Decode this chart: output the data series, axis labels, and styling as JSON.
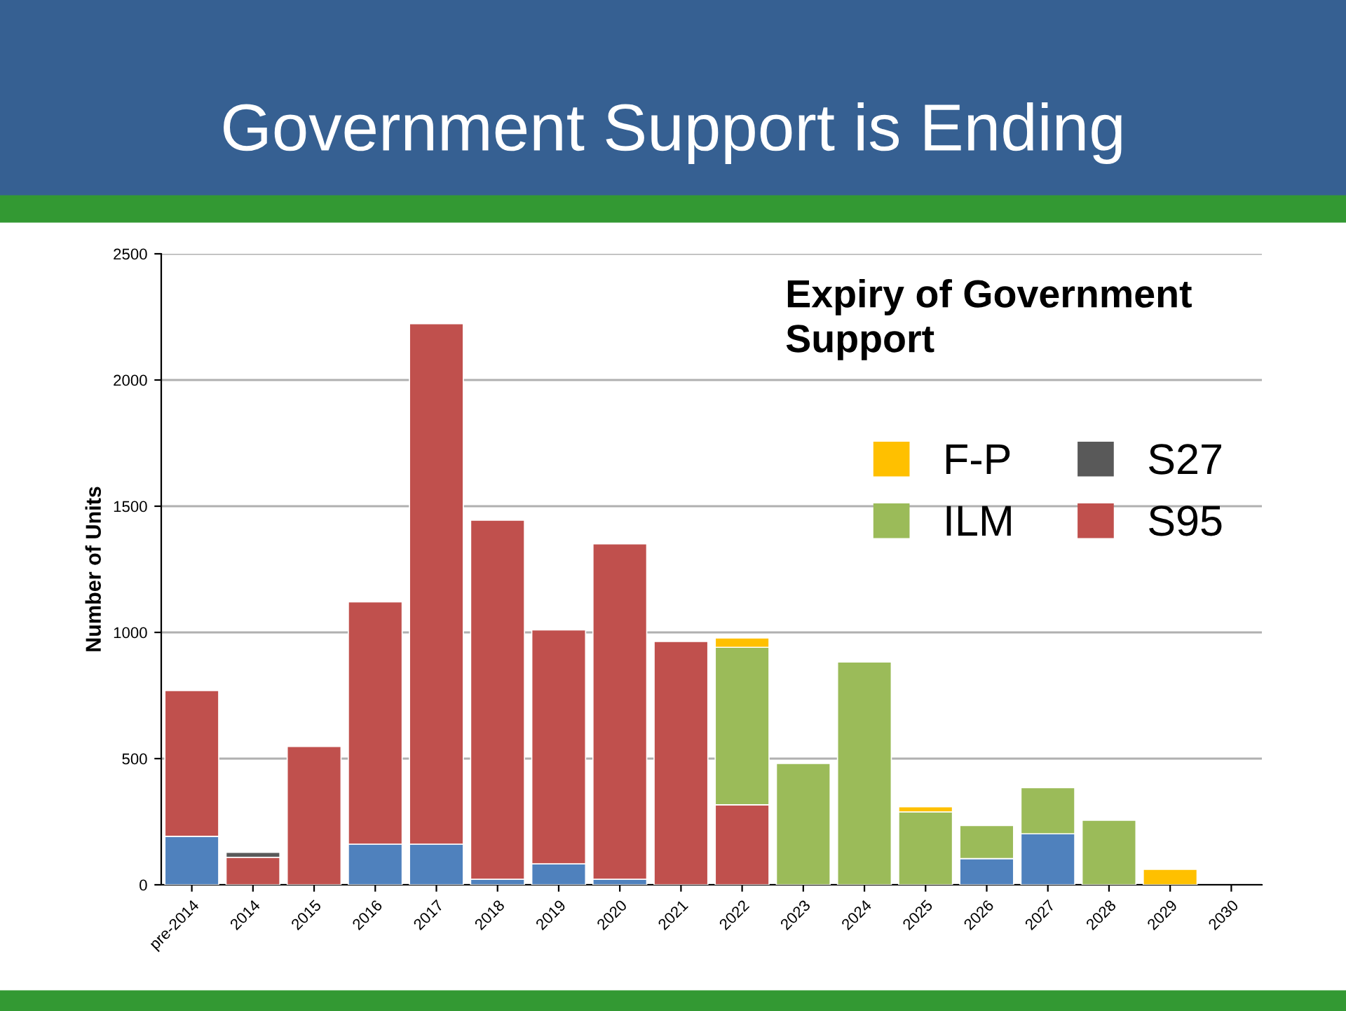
{
  "chart_data": {
    "type": "bar",
    "title": "Government Support is Ending",
    "subtitle": "Expiry of Government Support",
    "ylabel": "Number of Units",
    "categories": [
      "pre-2014",
      "2014",
      "2015",
      "2016",
      "2017",
      "2018",
      "2019",
      "2020",
      "2021",
      "2022",
      "2023",
      "2024",
      "2025",
      "2026",
      "2027",
      "2028",
      "2029",
      "2030"
    ],
    "stacked": true,
    "series": [
      {
        "color": "#4f81bd",
        "values": [
          192,
          null,
          null,
          161,
          161,
          22,
          83,
          22,
          null,
          null,
          null,
          null,
          null,
          104,
          202,
          null,
          null,
          null
        ]
      },
      {
        "name": "S95",
        "color": "#c0504d",
        "values": [
          578,
          109,
          548,
          960,
          2062,
          1423,
          927,
          1329,
          964,
          317,
          null,
          null,
          null,
          null,
          null,
          null,
          null,
          null
        ]
      },
      {
        "name": "S27",
        "color": "#595959",
        "values": [
          null,
          20,
          null,
          null,
          null,
          null,
          null,
          null,
          null,
          null,
          null,
          null,
          null,
          null,
          null,
          null,
          null,
          null
        ]
      },
      {
        "name": "ILM",
        "color": "#9bbb59",
        "values": [
          null,
          null,
          null,
          null,
          null,
          null,
          null,
          null,
          null,
          624,
          481,
          883,
          289,
          131,
          183,
          256,
          null,
          null
        ]
      },
      {
        "name": "F-P",
        "color": "#ffc000",
        "values": [
          null,
          null,
          null,
          null,
          null,
          null,
          null,
          null,
          null,
          37,
          null,
          null,
          20,
          null,
          null,
          null,
          61,
          null
        ]
      }
    ],
    "ylim": [
      0,
      2500
    ],
    "yticks": [
      0,
      500,
      1000,
      1500,
      2000,
      2500
    ],
    "grid": "y",
    "legend": "right"
  }
}
